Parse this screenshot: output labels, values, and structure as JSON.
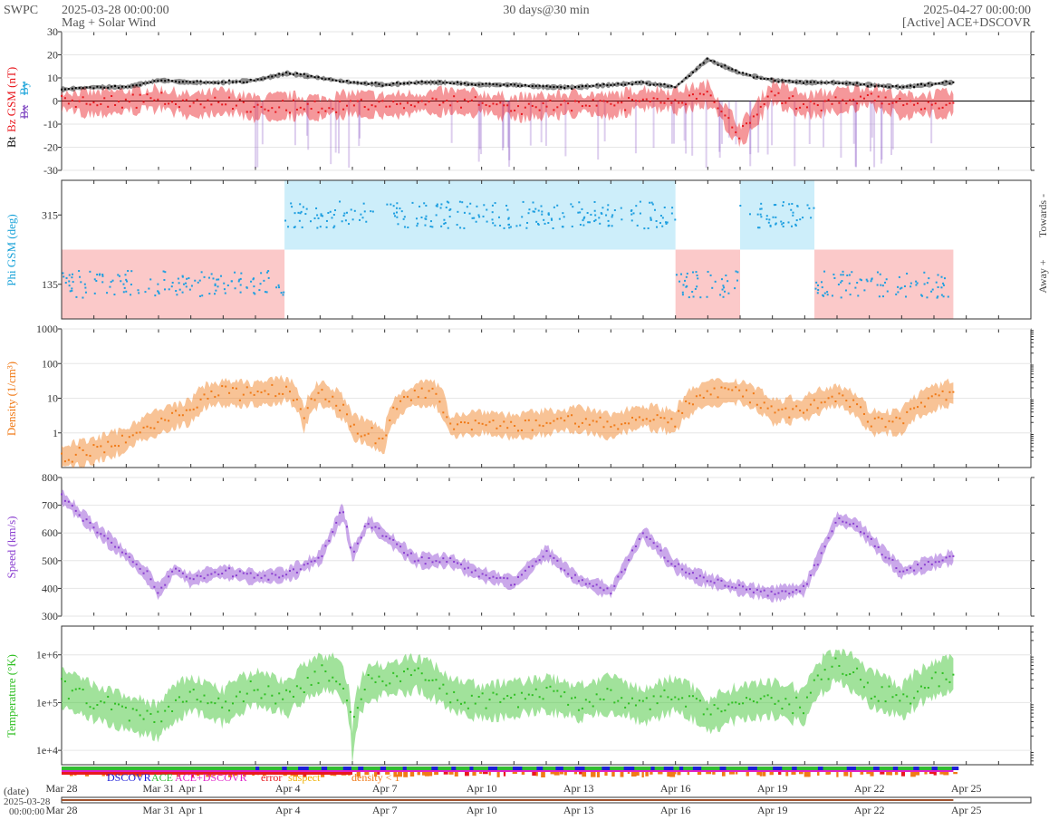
{
  "header": {
    "org": "SWPC",
    "start": "2025-03-28 00:00:00",
    "subtitle": "Mag + Solar Wind",
    "span": "30 days@30 min",
    "end": "2025-04-27 00:00:00",
    "source": "[Active] ACE+DSCOVR"
  },
  "colors": {
    "bt": "#000000",
    "bz": "#e8181e",
    "by": "#1aa3d9",
    "bx": "#7a3fbf",
    "phi_towards": "#cdeefa",
    "phi_away": "#fbc9c9",
    "phi_point": "#1e9fe0",
    "density": "#f07a17",
    "speed": "#8a3fd0",
    "temperature": "#2fbf22",
    "dscovr": "#1c1cd8",
    "ace": "#33bb33",
    "both": "#e020c8",
    "error": "#e8181e",
    "suspect": "#f0b000",
    "density_lt1": "#f07a17"
  },
  "chart_data": [
    {
      "type": "line",
      "name": "mag",
      "ylabel_parts": [
        "Bt",
        "Bz GSM (nT)",
        "Bx",
        "By"
      ],
      "ylim": [
        -30,
        30
      ],
      "yticks": [
        -30,
        -20,
        -10,
        0,
        10,
        20,
        30
      ],
      "grid": true,
      "x_days": [
        0,
        1,
        2,
        3,
        4,
        5,
        6,
        7,
        8,
        9,
        10,
        11,
        12,
        13,
        14,
        15,
        16,
        17,
        18,
        19,
        20,
        21,
        22,
        23,
        24,
        25,
        26,
        27.5
      ],
      "series": [
        {
          "key": "bt",
          "values": [
            5,
            6,
            6,
            9,
            8,
            8,
            9,
            12,
            10,
            8,
            7,
            8,
            8,
            7,
            7,
            6,
            6,
            7,
            8,
            6,
            18,
            12,
            9,
            8,
            8,
            7,
            6,
            8
          ]
        },
        {
          "key": "bz",
          "values": [
            0,
            -1,
            0,
            1,
            -2,
            0,
            -3,
            -2,
            -3,
            -1,
            -2,
            -1,
            0,
            -1,
            -3,
            -2,
            -1,
            -2,
            1,
            0,
            3,
            -15,
            4,
            -2,
            0,
            2,
            -2,
            -1
          ]
        }
      ]
    },
    {
      "type": "scatter",
      "name": "phi",
      "ylabel": "Phi GSM (deg)",
      "right_labels": [
        "Towards -",
        "Away +"
      ],
      "ylim": [
        45,
        405
      ],
      "yticks": [
        135,
        315
      ],
      "sectors": [
        {
          "from": 0,
          "to": 6.9,
          "sign": "away"
        },
        {
          "from": 6.9,
          "to": 19.0,
          "sign": "towards"
        },
        {
          "from": 19.0,
          "to": 21.0,
          "sign": "away"
        },
        {
          "from": 21.0,
          "to": 23.3,
          "sign": "towards"
        },
        {
          "from": 23.3,
          "to": 27.6,
          "sign": "away"
        }
      ]
    },
    {
      "type": "line",
      "name": "density",
      "ylabel": "Density (1/cm³)",
      "yscale": "log",
      "ylim": [
        0.1,
        1000
      ],
      "ytick_labels": [
        "1",
        "10",
        "100",
        "1000"
      ],
      "x_days": [
        0,
        1,
        2,
        3,
        4,
        4.5,
        5,
        6,
        7,
        7.5,
        8,
        9,
        10,
        11,
        11.5,
        12,
        13,
        14,
        15,
        16,
        17,
        18,
        19,
        20,
        21,
        22,
        23,
        24,
        25,
        26,
        27.5
      ],
      "values": [
        0.2,
        0.3,
        0.6,
        2,
        4,
        12,
        14,
        13,
        18,
        2,
        14,
        1.5,
        0.5,
        13,
        14,
        1.5,
        2,
        1.5,
        2,
        2.5,
        1.5,
        3,
        2,
        14,
        15,
        4,
        5,
        12,
        2,
        2,
        14
      ]
    },
    {
      "type": "line",
      "name": "speed",
      "ylabel": "Speed (km/s)",
      "ylim": [
        300,
        800
      ],
      "yticks": [
        300,
        400,
        500,
        600,
        700,
        800
      ],
      "x_days": [
        0,
        1,
        2,
        2.7,
        3,
        3.5,
        4,
        4.5,
        5,
        6,
        7,
        8,
        8.7,
        9,
        9.5,
        10,
        11,
        12,
        13,
        14,
        15,
        16,
        17,
        18,
        19,
        19.5,
        20,
        21,
        22,
        23,
        24,
        24.6,
        25,
        26,
        27.5
      ],
      "values": [
        730,
        620,
        520,
        440,
        390,
        470,
        430,
        450,
        460,
        440,
        450,
        510,
        680,
        520,
        640,
        590,
        500,
        500,
        450,
        420,
        530,
        430,
        390,
        600,
        480,
        450,
        430,
        400,
        380,
        400,
        650,
        630,
        580,
        460,
        510
      ]
    },
    {
      "type": "line",
      "name": "temperature",
      "ylabel": "Temperature (°K)",
      "yscale": "log",
      "ylim": [
        5000,
        4000000
      ],
      "ytick_labels": [
        "1e+4",
        "1e+5",
        "1e+6"
      ],
      "x_days": [
        0,
        1,
        2,
        3,
        4,
        5,
        6,
        7,
        8,
        8.5,
        9,
        9.5,
        10,
        11,
        12,
        13,
        14,
        15,
        16,
        17,
        18,
        19,
        20,
        21,
        22,
        23,
        24,
        25,
        26,
        27.5
      ],
      "values": [
        200000,
        100000,
        60000,
        40000,
        150000,
        80000,
        200000,
        120000,
        400000,
        400000,
        6000,
        250000,
        300000,
        400000,
        150000,
        100000,
        120000,
        150000,
        100000,
        150000,
        80000,
        150000,
        50000,
        100000,
        120000,
        80000,
        600000,
        200000,
        100000,
        400000
      ]
    }
  ],
  "source_legend": {
    "dscovr": "DSCOVR",
    "ace": "ACE",
    "both": "ACE+DSCOVR",
    "error": "error",
    "suspect": "suspect",
    "density_lt1": "density < 1"
  },
  "timeline": {
    "date_label": "(date)",
    "start_line1": "2025-03-28",
    "start_line2": "00:00:00"
  },
  "xaxis": {
    "tick_labels": [
      "Mar 28",
      "Mar 31",
      "Apr 1",
      "Apr 4",
      "Apr 7",
      "Apr 10",
      "Apr 13",
      "Apr 16",
      "Apr 19",
      "Apr 22",
      "Apr 25"
    ],
    "tick_days": [
      0,
      3,
      4,
      7,
      10,
      13,
      16,
      19,
      22,
      25,
      28
    ]
  }
}
